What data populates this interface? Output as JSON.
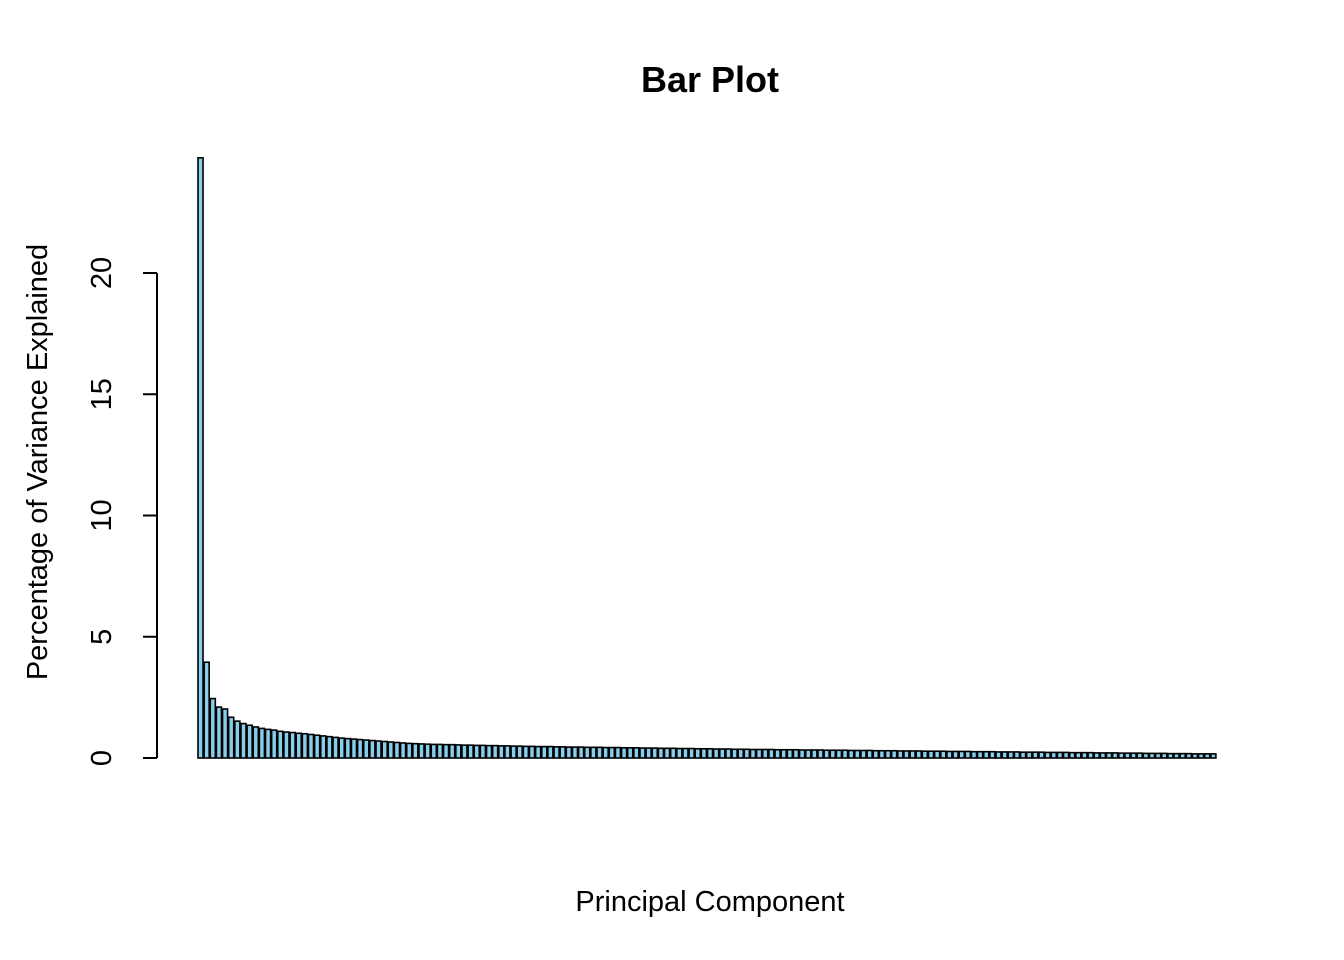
{
  "chart_data": {
    "type": "bar",
    "title": "Bar Plot",
    "xlabel": "Principal Component",
    "ylabel": "Percentage of Variance Explained",
    "ylim": [
      0,
      25
    ],
    "yticks": [
      {
        "value": 0,
        "label": "0"
      },
      {
        "value": 5,
        "label": "5"
      },
      {
        "value": 10,
        "label": "10"
      },
      {
        "value": 15,
        "label": "15"
      },
      {
        "value": 20,
        "label": "20"
      }
    ],
    "bar_color": "#87CEEB",
    "bar_border_color": "#000000",
    "grid": false,
    "values": [
      24.75,
      3.95,
      2.45,
      2.1,
      2.02,
      1.68,
      1.52,
      1.42,
      1.35,
      1.28,
      1.22,
      1.18,
      1.15,
      1.1,
      1.07,
      1.05,
      1.02,
      1.0,
      0.97,
      0.94,
      0.91,
      0.88,
      0.85,
      0.82,
      0.8,
      0.78,
      0.76,
      0.74,
      0.72,
      0.7,
      0.68,
      0.66,
      0.64,
      0.62,
      0.6,
      0.59,
      0.58,
      0.57,
      0.56,
      0.56,
      0.55,
      0.55,
      0.54,
      0.53,
      0.53,
      0.52,
      0.52,
      0.51,
      0.51,
      0.5,
      0.5,
      0.49,
      0.49,
      0.48,
      0.48,
      0.47,
      0.47,
      0.47,
      0.46,
      0.46,
      0.45,
      0.45,
      0.45,
      0.44,
      0.44,
      0.44,
      0.43,
      0.43,
      0.43,
      0.42,
      0.42,
      0.42,
      0.41,
      0.41,
      0.41,
      0.4,
      0.4,
      0.4,
      0.39,
      0.39,
      0.39,
      0.38,
      0.38,
      0.38,
      0.37,
      0.37,
      0.37,
      0.36,
      0.36,
      0.36,
      0.35,
      0.35,
      0.35,
      0.35,
      0.34,
      0.34,
      0.34,
      0.34,
      0.33,
      0.33,
      0.33,
      0.33,
      0.32,
      0.32,
      0.32,
      0.32,
      0.31,
      0.31,
      0.31,
      0.31,
      0.3,
      0.3,
      0.3,
      0.3,
      0.29,
      0.29,
      0.29,
      0.29,
      0.28,
      0.28,
      0.28,
      0.28,
      0.27,
      0.27,
      0.27,
      0.27,
      0.26,
      0.26,
      0.26,
      0.26,
      0.25,
      0.25,
      0.25,
      0.25,
      0.24,
      0.24,
      0.24,
      0.24,
      0.23,
      0.23,
      0.23,
      0.23,
      0.22,
      0.22,
      0.22,
      0.22,
      0.21,
      0.21,
      0.21,
      0.21,
      0.2,
      0.2,
      0.2,
      0.2,
      0.19,
      0.19,
      0.19,
      0.19,
      0.18,
      0.18,
      0.18,
      0.18,
      0.17,
      0.17,
      0.17,
      0.17
    ]
  }
}
